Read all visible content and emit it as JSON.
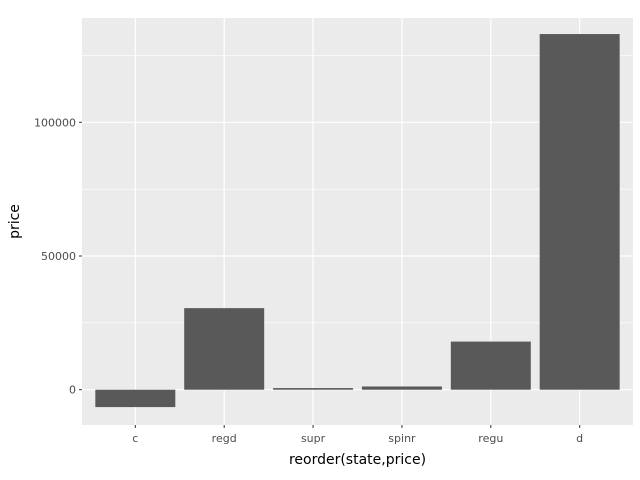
{
  "chart_data": {
    "type": "bar",
    "xlabel": "reorder(state,price)",
    "ylabel": "price",
    "categories": [
      "c",
      "regd",
      "supr",
      "spinr",
      "regu",
      "d"
    ],
    "values": [
      -6500,
      30500,
      600,
      1200,
      18000,
      133000
    ],
    "ylim": [
      -13200,
      139000
    ],
    "yticks": [
      0,
      50000,
      100000
    ],
    "ytick_labels": [
      "0",
      "50000",
      "100000"
    ],
    "grid": true,
    "legend": "none",
    "colors": {
      "panel_background": "#ebebeb",
      "grid_major": "#ffffff",
      "bar_fill": "#595959",
      "axis_text": "#4d4d4d",
      "axis_title": "#000000"
    }
  }
}
